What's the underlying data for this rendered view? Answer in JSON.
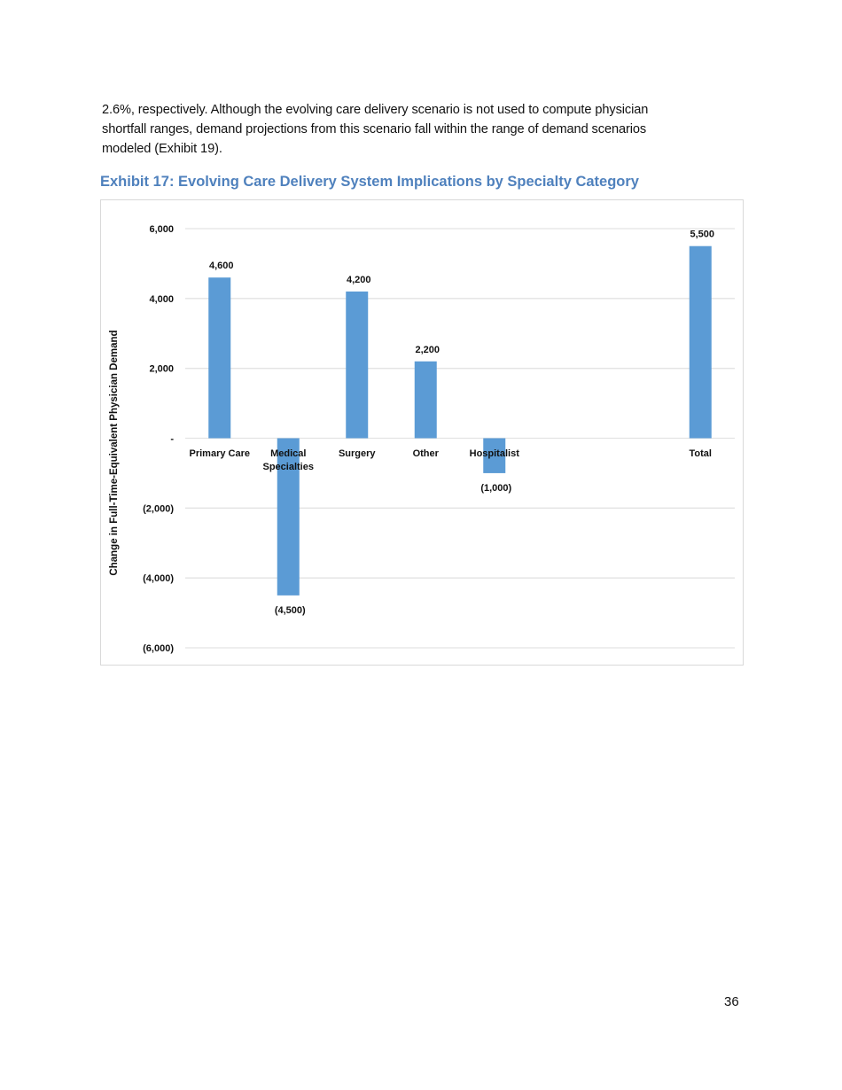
{
  "paragraph": {
    "lines": [
      "2.6%, respectively. Although the evolving care delivery scenario is not used to compute physician",
      "shortfall ranges, demand projections from this scenario fall within the range of demand scenarios",
      "modeled (Exhibit 19)."
    ]
  },
  "exhibit_title": "Exhibit 17: Evolving Care Delivery System Implications by Specialty Category",
  "page_number": "36",
  "chart_data": {
    "type": "bar",
    "title": "",
    "xlabel": "",
    "ylabel": "Change in Full-Time-Equivalent Physician Demand",
    "categories": [
      [
        "Primary Care"
      ],
      [
        "Medical",
        "Specialties"
      ],
      [
        "Surgery"
      ],
      [
        "Other"
      ],
      [
        "Hospitalist"
      ],
      [
        ""
      ],
      [
        ""
      ],
      [
        "Total"
      ]
    ],
    "values": [
      4600,
      -4500,
      4200,
      2200,
      -1000,
      null,
      null,
      5500
    ],
    "data_labels": [
      "4,600",
      "(4,500)",
      "4,200",
      "2,200",
      "(1,000)",
      "",
      "",
      "5,500"
    ],
    "ylim": [
      -6000,
      6000
    ],
    "yticks": [
      6000,
      4000,
      2000,
      0,
      -2000,
      -4000,
      -6000
    ],
    "ytick_labels": [
      "6,000",
      "4,000",
      "2,000",
      "-",
      "(2,000)",
      "(4,000)",
      "(6,000)"
    ],
    "grid": true,
    "legend": "none",
    "bar_color": "#5B9BD5",
    "grid_color": "#e3e3e3"
  }
}
